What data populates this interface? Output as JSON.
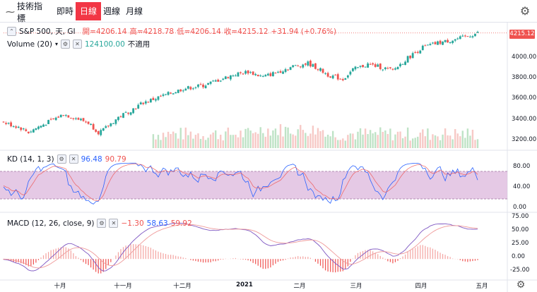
{
  "toolbar": {
    "compare_label": "技術指標",
    "timeframes": [
      "即時",
      "日線",
      "週線",
      "月線"
    ],
    "active_timeframe": "日線"
  },
  "main_legend": {
    "symbol": "S&P 500, 天, GI",
    "open_label": "開=4206.14",
    "high_label": "高=4218.78",
    "low_label": "低=4206.14",
    "close_label": "收=4215.12",
    "change": "+31.94 (+0.76%)"
  },
  "volume_legend": {
    "name": "Volume (20)",
    "value": "124100.00",
    "note": "不適用"
  },
  "kd_legend": {
    "name": "KD (14, 1, 3)",
    "k": "96.48",
    "d": "90.79"
  },
  "macd_legend": {
    "name": "MACD (12, 26, close, 9)",
    "hist": "−1.30",
    "macd": "58.63",
    "signal": "59.92"
  },
  "last_price_tag": "4215.12",
  "price_axis": [
    "4000.00",
    "3800.00",
    "3600.00",
    "3400.00",
    "3200.00"
  ],
  "kd_axis": [
    "80.00",
    "40.00",
    "0.00"
  ],
  "macd_axis": [
    "75.00",
    "50.00",
    "25.00",
    "0.00",
    "-25.00"
  ],
  "x_axis": [
    "十月",
    "十一月",
    "十二月",
    "2021",
    "二月",
    "三月",
    "四月",
    "五月"
  ],
  "colors": {
    "up": "#26a69a",
    "down": "#ef5350",
    "accent": "#f23645",
    "k_line": "#2962ff",
    "d_line": "#ef5350",
    "kd_band": "#dcb7dc"
  },
  "chart_data": {
    "type": "candlestick",
    "price_range": [
      3130,
      4260
    ],
    "close_trend": [
      [
        0,
        3370
      ],
      [
        6,
        3330
      ],
      [
        10,
        3280
      ],
      [
        14,
        3330
      ],
      [
        20,
        3400
      ],
      [
        24,
        3450
      ],
      [
        28,
        3420
      ],
      [
        34,
        3370
      ],
      [
        38,
        3280
      ],
      [
        40,
        3300
      ],
      [
        46,
        3420
      ],
      [
        52,
        3500
      ],
      [
        56,
        3560
      ],
      [
        60,
        3590
      ],
      [
        66,
        3640
      ],
      [
        72,
        3690
      ],
      [
        80,
        3720
      ],
      [
        86,
        3770
      ],
      [
        92,
        3820
      ],
      [
        98,
        3850
      ],
      [
        104,
        3800
      ],
      [
        110,
        3850
      ],
      [
        116,
        3900
      ],
      [
        122,
        3930
      ],
      [
        126,
        3880
      ],
      [
        130,
        3820
      ],
      [
        136,
        3780
      ],
      [
        140,
        3870
      ],
      [
        146,
        3920
      ],
      [
        150,
        3900
      ],
      [
        156,
        3860
      ],
      [
        162,
        3980
      ],
      [
        168,
        4080
      ],
      [
        174,
        4120
      ],
      [
        178,
        4140
      ],
      [
        184,
        4170
      ],
      [
        190,
        4215
      ]
    ],
    "kd_range": [
      0,
      100
    ],
    "macd_range": [
      -35,
      78
    ]
  }
}
